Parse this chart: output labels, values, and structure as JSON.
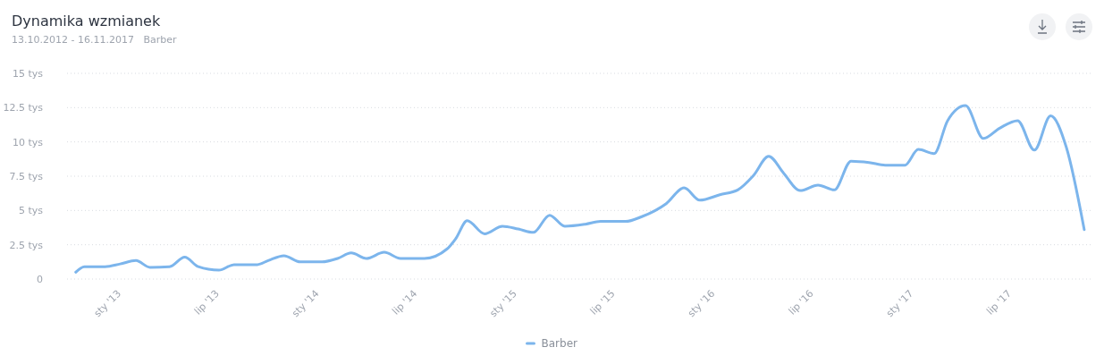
{
  "chart_data": {
    "type": "line",
    "title": "Dynamika wzmianek",
    "subtitle": "13.10.2012 - 16.11.2017   Barber",
    "x": [
      "2012-10-13",
      "2012-10-29",
      "2012-12-06",
      "2013-01-03",
      "2013-02-01",
      "2013-02-27",
      "2013-04-04",
      "2013-05-02",
      "2013-05-27",
      "2013-07-04",
      "2013-08-01",
      "2013-09-13",
      "2013-10-03",
      "2013-11-01",
      "2013-12-01",
      "2014-01-10",
      "2014-02-08",
      "2014-03-05",
      "2014-04-02",
      "2014-05-05",
      "2014-06-04",
      "2014-07-18",
      "2014-08-29",
      "2014-09-14",
      "2014-10-05",
      "2014-11-06",
      "2014-12-09",
      "2015-01-07",
      "2015-02-04",
      "2015-03-06",
      "2015-04-03",
      "2015-05-11",
      "2015-06-08",
      "2015-07-24",
      "2015-08-23",
      "2015-10-07",
      "2015-11-09",
      "2015-12-08",
      "2016-01-14",
      "2016-02-16",
      "2016-03-16",
      "2016-04-13",
      "2016-05-11",
      "2016-06-10",
      "2016-07-13",
      "2016-08-12",
      "2016-09-12",
      "2016-10-15",
      "2016-11-14",
      "2016-12-20",
      "2017-01-14",
      "2017-02-12",
      "2017-03-09",
      "2017-04-11",
      "2017-05-14",
      "2017-06-13",
      "2017-07-16",
      "2017-08-16",
      "2017-09-15",
      "2017-10-14",
      "2017-11-16"
    ],
    "series": [
      {
        "name": "Barber",
        "color": "#7cb5ec",
        "values": [
          0.5,
          0.9,
          0.9,
          1.1,
          1.35,
          0.85,
          0.9,
          1.6,
          0.9,
          0.65,
          1.05,
          1.05,
          1.35,
          1.7,
          1.25,
          1.25,
          1.5,
          1.9,
          1.5,
          1.95,
          1.5,
          1.5,
          2.2,
          2.95,
          4.25,
          3.3,
          3.85,
          3.65,
          3.4,
          4.65,
          3.85,
          4.0,
          4.2,
          4.2,
          4.55,
          5.5,
          6.65,
          5.75,
          6.15,
          6.5,
          7.55,
          8.95,
          7.7,
          6.45,
          6.85,
          6.5,
          8.6,
          8.5,
          8.3,
          8.3,
          9.45,
          9.15,
          11.55,
          12.65,
          10.25,
          11.0,
          11.55,
          9.4,
          11.9,
          9.6,
          3.6
        ]
      }
    ],
    "xlim": [
      "2012-09-27",
      "2017-12-01"
    ],
    "xticks": [
      {
        "value": "2013-01-01",
        "label": "sty '13"
      },
      {
        "value": "2013-07-01",
        "label": "lip '13"
      },
      {
        "value": "2014-01-01",
        "label": "sty '14"
      },
      {
        "value": "2014-07-01",
        "label": "lip '14"
      },
      {
        "value": "2015-01-01",
        "label": "sty '15"
      },
      {
        "value": "2015-07-01",
        "label": "lip '15"
      },
      {
        "value": "2016-01-01",
        "label": "sty '16"
      },
      {
        "value": "2016-07-01",
        "label": "lip '16"
      },
      {
        "value": "2017-01-01",
        "label": "sty '17"
      },
      {
        "value": "2017-07-01",
        "label": "lip '17"
      }
    ],
    "ylim": [
      0,
      15
    ],
    "yticks": [
      0,
      {
        "value": 2.5,
        "label": "2.5 tys"
      },
      {
        "value": 5,
        "label": "5 tys"
      },
      {
        "value": 7.5,
        "label": "7.5 tys"
      },
      {
        "value": 10,
        "label": "10 tys"
      },
      {
        "value": 12.5,
        "label": "12.5 tys"
      },
      {
        "value": 15,
        "label": "15 tys"
      }
    ],
    "grid": "y",
    "legend": "bottom",
    "marker": "none",
    "line_style": "solid"
  }
}
